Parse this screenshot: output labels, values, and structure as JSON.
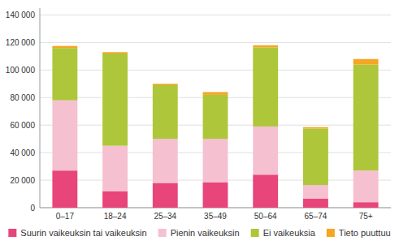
{
  "chart_data": {
    "type": "bar",
    "stacked": true,
    "categories": [
      "0–17",
      "18–24",
      "25–34",
      "35–49",
      "50–64",
      "65–74",
      "75+"
    ],
    "series": [
      {
        "name": "Suurin vaikeuksin tai vaikeuksin",
        "color": "#e8457a",
        "values": [
          27000,
          12000,
          18000,
          18500,
          24000,
          6500,
          4000
        ]
      },
      {
        "name": "Pienin vaikeuksin",
        "color": "#f5c0d0",
        "values": [
          51000,
          33000,
          32000,
          31500,
          35000,
          10000,
          23000
        ]
      },
      {
        "name": "Ei vaikeuksia",
        "color": "#aec639",
        "values": [
          38000,
          67000,
          39000,
          32000,
          57500,
          41000,
          77000
        ]
      },
      {
        "name": "Tieto puuttuu",
        "color": "#f5a623",
        "values": [
          1500,
          1000,
          1000,
          2000,
          1500,
          1000,
          4000
        ]
      }
    ],
    "ylim": [
      0,
      145000
    ],
    "yticks": [
      0,
      {
        "value": 20000,
        "label": "20 000"
      },
      {
        "value": 40000,
        "label": "40 000"
      },
      {
        "value": 60000,
        "label": "60 000"
      },
      {
        "value": 80000,
        "label": "80 000"
      },
      {
        "value": 100000,
        "label": "100 000"
      },
      {
        "value": 120000,
        "label": "120 000"
      },
      {
        "value": 140000,
        "label": "140 000"
      }
    ],
    "grid": true,
    "legend": "bottom"
  }
}
